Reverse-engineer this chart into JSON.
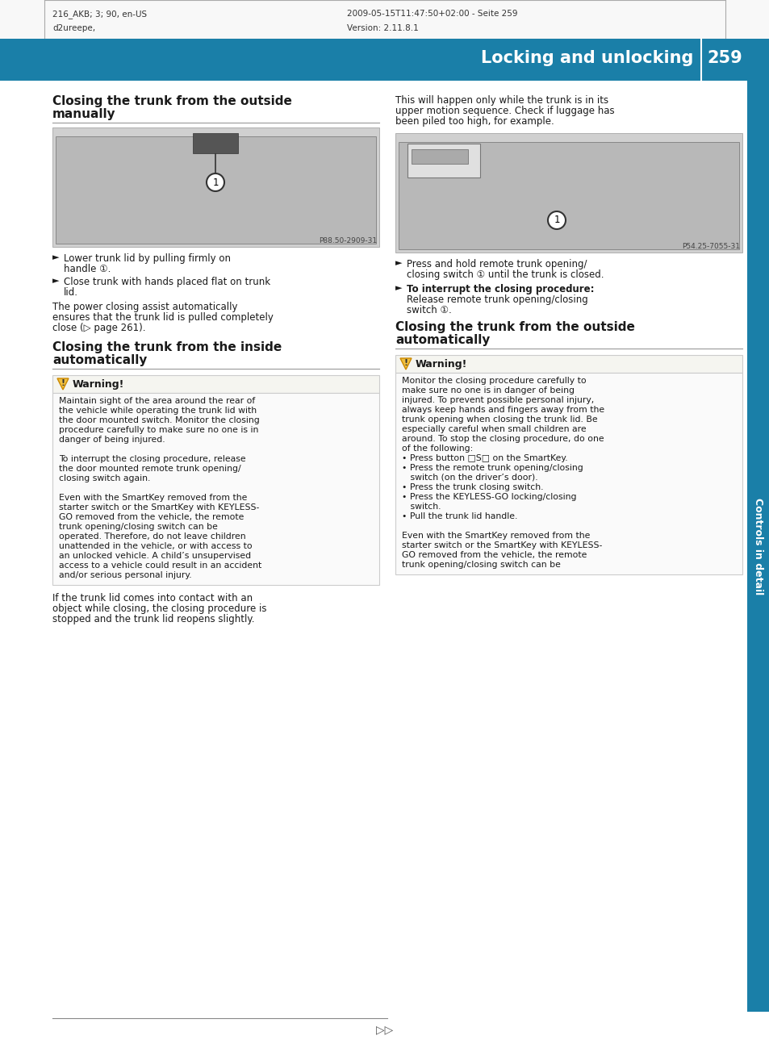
{
  "page_bg": "#ffffff",
  "header_bg": "#1a7fa8",
  "header_text_color": "#ffffff",
  "header_left_line1": "216_AKB; 3; 90, en-US",
  "header_left_line2": "d2ureepe,",
  "header_right_line1": "2009-05-15T11:47:50+02:00 - Seite 259",
  "header_right_line2": "Version: 2.11.8.1",
  "header_title": "Locking and unlocking",
  "page_number": "259",
  "sidebar_color": "#1a7fa8",
  "sidebar_text": "Controls in detail",
  "warning_icon_color": "#e8a020",
  "teal_color": "#1a7fa8",
  "dark_text": "#1a1a1a",
  "img1_caption": "P88.50-2909-31",
  "img2_caption": "P54.25-7055-31",
  "bullet_char": "►",
  "footer_arrow": "▷▷",
  "divider_color": "#999999"
}
